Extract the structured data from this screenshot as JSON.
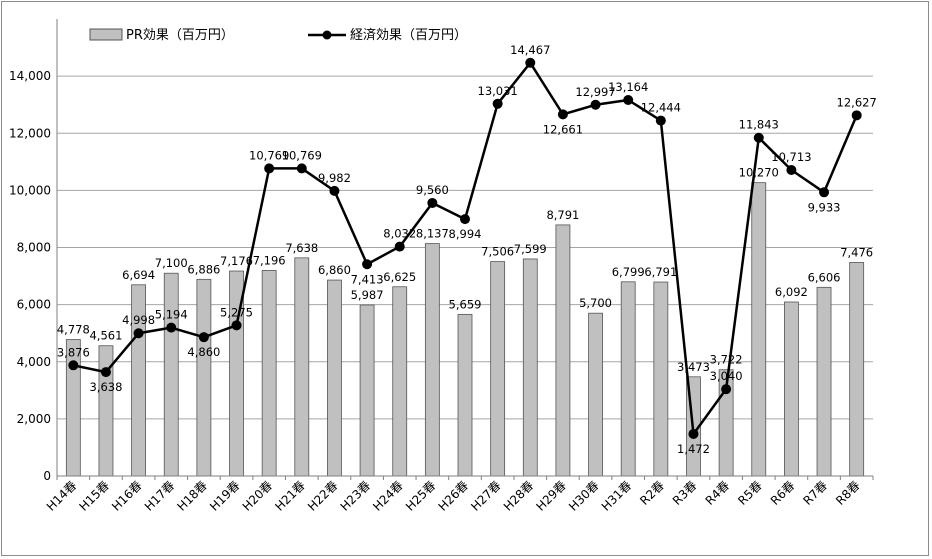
{
  "chart_data": {
    "type": "bar",
    "categories": [
      "H14春",
      "H15春",
      "H16春",
      "H17春",
      "H18春",
      "H19春",
      "H20春",
      "H21春",
      "H22春",
      "H23春",
      "H24春",
      "H25春",
      "H26春",
      "H27春",
      "H28春",
      "H29春",
      "H30春",
      "H31春",
      "R2春",
      "R3春",
      "R4春",
      "R5春",
      "R6春",
      "R7春",
      "R8春"
    ],
    "series": [
      {
        "name": "PR効果（百万円）",
        "kind": "bar",
        "values": [
          4778,
          4561,
          6694,
          7100,
          6886,
          7176,
          7196,
          7638,
          6860,
          5987,
          6625,
          8137,
          5659,
          7506,
          7599,
          8791,
          5700,
          6799,
          6791,
          3473,
          3722,
          10270,
          6092,
          6606,
          7476
        ],
        "labels": [
          "4,778",
          "4,561",
          "6,694",
          "7,100",
          "6,886",
          "7,176",
          "7,196",
          "7,638",
          "6,860",
          "5,987",
          "6,625",
          "8,137",
          "5,659",
          "7,506",
          "7,599",
          "8,791",
          "5,700",
          "6,799",
          "6,791",
          "3,473",
          "3,722",
          "10,270",
          "6,092",
          "6,606",
          "7,476"
        ]
      },
      {
        "name": "経済効果（百万円）",
        "kind": "line",
        "values": [
          3876,
          3638,
          4998,
          5194,
          4860,
          5275,
          10769,
          10769,
          9982,
          7413,
          8032,
          9560,
          8994,
          13031,
          14467,
          12661,
          12997,
          13164,
          12444,
          1472,
          3040,
          11843,
          10713,
          9933,
          12627
        ],
        "labels": [
          "3,876",
          "3,638",
          "4,998",
          "5,194",
          "4,860",
          "5,275",
          "10,769",
          "10,769",
          "9,982",
          "7,413",
          "8,032",
          "9,560",
          "8,994",
          "13,031",
          "14,467",
          "12,661",
          "12,997",
          "13,164",
          "12,444",
          "1,472",
          "3,040",
          "11,843",
          "10,713",
          "9,933",
          "12,627"
        ]
      }
    ],
    "ylim": [
      0,
      16000
    ],
    "yticks": [
      0,
      2000,
      4000,
      6000,
      8000,
      10000,
      12000,
      14000
    ],
    "ytick_labels": [
      "0",
      "2,000",
      "4,000",
      "6,000",
      "8,000",
      "10,000",
      "12,000",
      "14,000"
    ],
    "grid": true,
    "legend_position": "top-left",
    "colors": {
      "bar_fill": "#c0c0c0",
      "bar_stroke": "#555555",
      "line": "#000000",
      "grid": "#a6a6a6"
    }
  }
}
